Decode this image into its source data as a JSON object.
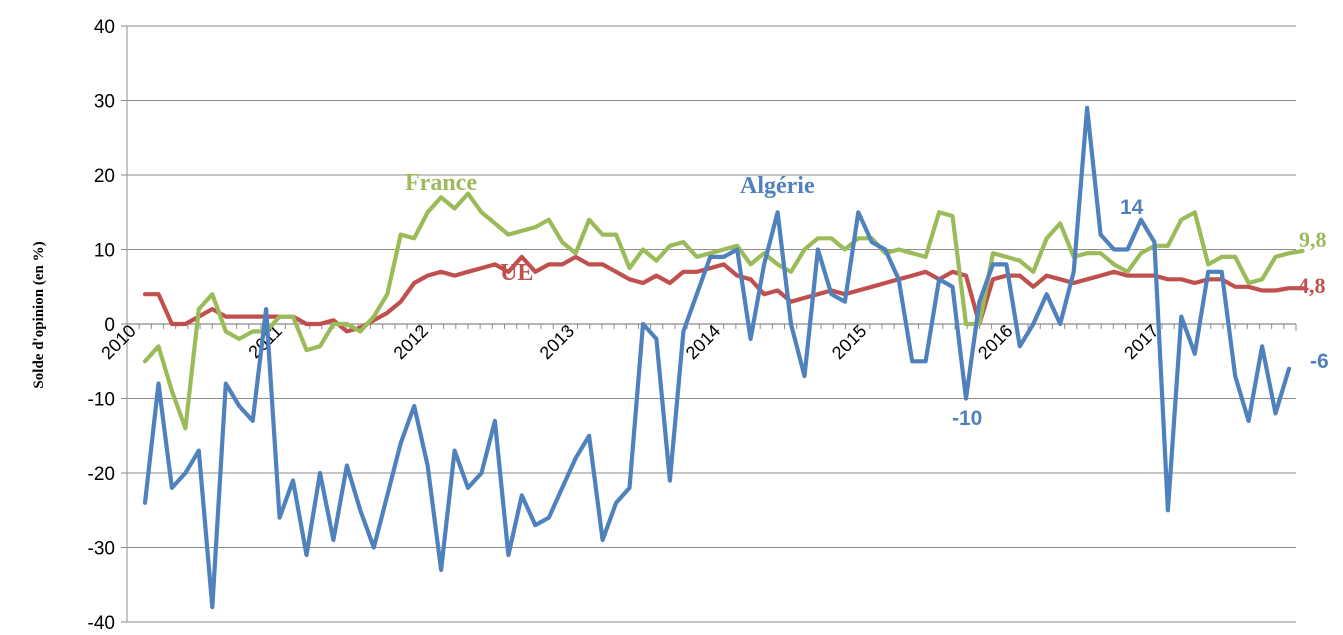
{
  "chart_data": {
    "type": "line",
    "ylabel": "Solde d'opinion (en %)",
    "ylim": [
      -40,
      40
    ],
    "yticks": [
      "40",
      "30",
      "20",
      "10",
      "0",
      "-10",
      "-20",
      "-30",
      "-40"
    ],
    "x_tick_labels": [
      "2010",
      "2011",
      "2012",
      "2013",
      "2014",
      "2015",
      "2016",
      "2017"
    ],
    "grid": "horizontal",
    "series": [
      {
        "name": "Algérie",
        "color": "#4F81BD",
        "values": [
          -24,
          -8,
          -22,
          -20,
          -17,
          -38,
          -8,
          -11,
          -13,
          2,
          -26,
          -21,
          -31,
          -20,
          -29,
          -19,
          -25,
          -30,
          -23,
          -16,
          -11,
          -19,
          -33,
          -17,
          -22,
          -20,
          -13,
          -31,
          -23,
          -27,
          -26,
          -22,
          -18,
          -15,
          -29,
          -24,
          -22,
          0,
          -2,
          -21,
          -1,
          4,
          9,
          9,
          10,
          -2,
          8,
          15,
          0,
          -7,
          10,
          4,
          3,
          15,
          11,
          10,
          6,
          -5,
          -5,
          6,
          5,
          -10,
          3,
          8,
          8,
          -3,
          0,
          4,
          0,
          7,
          29,
          12,
          10,
          10,
          14,
          11,
          -25,
          1,
          -4,
          7,
          7,
          -7,
          -13,
          -3,
          -12,
          -6
        ],
        "annotations": [
          {
            "text": "Algérie"
          },
          {
            "text": "14"
          },
          {
            "text": "-10"
          },
          {
            "text": "-6"
          }
        ]
      },
      {
        "name": "France",
        "color": "#9BBB59",
        "values": [
          -5,
          -3,
          -9,
          -14,
          2,
          4,
          -1,
          -2,
          -1,
          -1,
          1,
          1,
          -3.5,
          -3,
          0,
          0,
          -1,
          1,
          4,
          12,
          11.5,
          15,
          17,
          15.5,
          17.5,
          15,
          13.5,
          12,
          12.5,
          13,
          14,
          11,
          9.5,
          14,
          12,
          12,
          7.5,
          10,
          8.5,
          10.5,
          11,
          9,
          9.5,
          10,
          10.5,
          8,
          9.5,
          8,
          7,
          10,
          11.5,
          11.5,
          10,
          11.5,
          11.5,
          9.5,
          10,
          9.5,
          9,
          15,
          14.5,
          0,
          0,
          9.5,
          9,
          8.5,
          7,
          11.5,
          13.5,
          9,
          9.5,
          9.5,
          8,
          7,
          9.5,
          10.5,
          10.5,
          14,
          15,
          8,
          9,
          9,
          5.5,
          6,
          9,
          9.5,
          9.8
        ],
        "annotations": [
          {
            "text": "France"
          },
          {
            "text": "9,8"
          }
        ]
      },
      {
        "name": "UE",
        "color": "#C0504D",
        "values": [
          4,
          4,
          0,
          0,
          1,
          2,
          1,
          1,
          1,
          1,
          1,
          1,
          0,
          0,
          0.5,
          -1,
          -0.5,
          0.5,
          1.5,
          3,
          5.5,
          6.5,
          7,
          6.5,
          7,
          7.5,
          8,
          7,
          9,
          7,
          8,
          8,
          9,
          8,
          8,
          7,
          6,
          5.5,
          6.5,
          5.5,
          7,
          7,
          7.5,
          8,
          6.5,
          6,
          4,
          4.5,
          3,
          3.5,
          4,
          4.5,
          4,
          4.5,
          5,
          5.5,
          6,
          6.5,
          7,
          6,
          7,
          6.5,
          0,
          6,
          6.5,
          6.5,
          5,
          6.5,
          6,
          5.5,
          6,
          6.5,
          7,
          6.5,
          6.5,
          6.5,
          6,
          6,
          5.5,
          6,
          6,
          5,
          5,
          4.5,
          4.5,
          4.8,
          4.8
        ],
        "annotations": [
          {
            "text": "UE"
          },
          {
            "text": "4,8"
          }
        ]
      }
    ]
  }
}
